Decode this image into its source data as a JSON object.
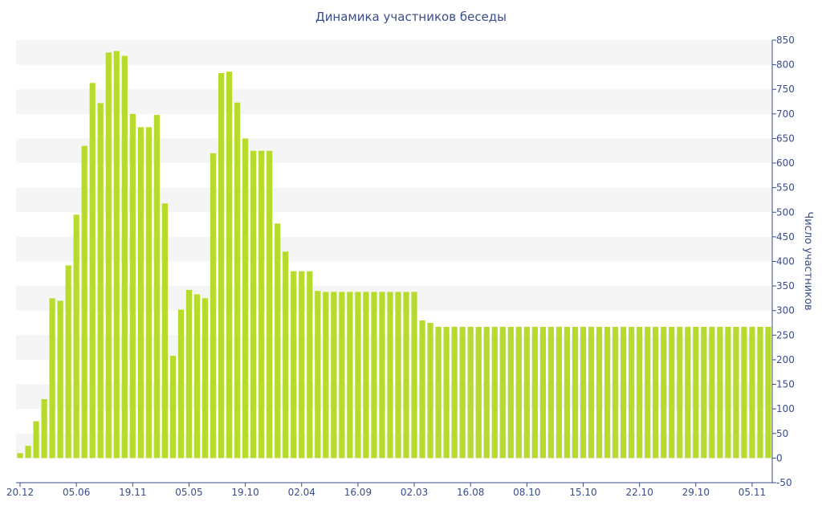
{
  "chart_data": {
    "type": "bar",
    "title": "Динамика участников беседы",
    "ylabel": "Число участников",
    "xlabel": "",
    "ylim": [
      -50,
      850
    ],
    "y_ticks": [
      -50,
      0,
      50,
      100,
      150,
      200,
      250,
      300,
      350,
      400,
      450,
      500,
      550,
      600,
      650,
      700,
      750,
      800,
      850
    ],
    "y_axis_position": "right",
    "grid": "alternating horizontal bands",
    "legend": "none",
    "x_tick_labels": [
      {
        "label": "20.12",
        "index": 0
      },
      {
        "label": "05.06",
        "index": 7
      },
      {
        "label": "19.11",
        "index": 14
      },
      {
        "label": "05.05",
        "index": 21
      },
      {
        "label": "19.10",
        "index": 28
      },
      {
        "label": "02.04",
        "index": 35
      },
      {
        "label": "16.09",
        "index": 42
      },
      {
        "label": "02.03",
        "index": 49
      },
      {
        "label": "16.08",
        "index": 56
      },
      {
        "label": "08.10",
        "index": 63
      },
      {
        "label": "15.10",
        "index": 70
      },
      {
        "label": "22.10",
        "index": 77
      },
      {
        "label": "29.10",
        "index": 84
      },
      {
        "label": "05.11",
        "index": 91
      }
    ],
    "values": [
      10,
      25,
      75,
      120,
      325,
      320,
      392,
      495,
      635,
      763,
      722,
      825,
      828,
      818,
      700,
      673,
      673,
      698,
      518,
      208,
      302,
      342,
      333,
      325,
      620,
      783,
      786,
      723,
      650,
      625,
      625,
      625,
      477,
      420,
      380,
      380,
      380,
      340,
      338,
      338,
      338,
      338,
      338,
      338,
      338,
      338,
      338,
      338,
      338,
      338,
      280,
      275,
      267,
      267,
      267,
      267,
      267,
      267,
      267,
      267,
      267,
      267,
      267,
      267,
      267,
      267,
      267,
      267,
      267,
      267,
      267,
      267,
      267,
      267,
      267,
      267,
      267,
      267,
      267,
      267,
      267,
      267,
      267,
      267,
      267,
      267,
      267,
      267,
      267,
      267,
      267,
      267,
      267,
      267
    ],
    "colors": {
      "bar": "#b7db2c",
      "text": "#3a4d8a",
      "band": "#f5f5f5",
      "axis": "#3a4d8a"
    }
  }
}
